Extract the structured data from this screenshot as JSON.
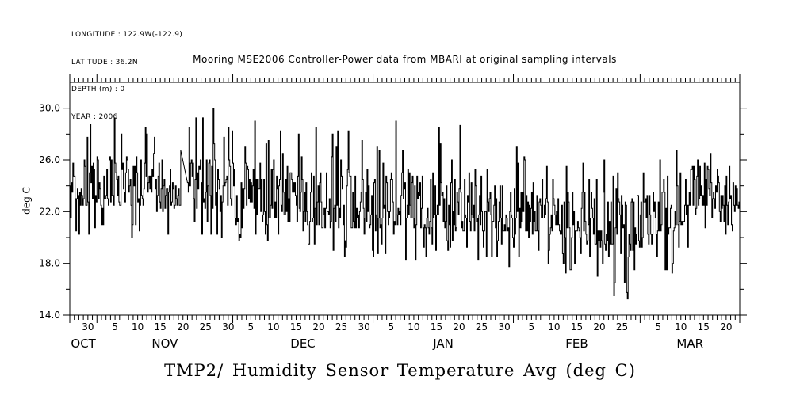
{
  "page": {
    "background": "#ffffff",
    "ink": "#000000"
  },
  "header": {
    "meta_lines": [
      "LONGITUDE : 122.9W(-122.9)",
      "LATITUDE : 36.2N",
      "DEPTH (m) : 0",
      "YEAR : 2006"
    ],
    "title": "Mooring MSE2006 Controller-Power data from MBARI at original sampling intervals"
  },
  "footer": {
    "title": "TMP2/ Humidity Sensor Temperature Avg (deg C)"
  },
  "chart_data": {
    "type": "line",
    "style": "staircase",
    "title": "Mooring MSE2006 Controller-Power data from MBARI at original sampling intervals",
    "xlabel": "",
    "ylabel": "deg C",
    "ylim": [
      14,
      32
    ],
    "yticks_labeled": [
      14.0,
      18.0,
      22.0,
      26.0,
      30.0
    ],
    "yticks_minor": [
      16.0,
      20.0,
      24.0,
      28.0
    ],
    "grid": false,
    "legend": "none",
    "x_view_days": [
      0,
      148
    ],
    "x_day_tick_step": 1,
    "x_day_label_step": 5,
    "x_months": [
      {
        "label": "OCT",
        "first_day": -25,
        "days": 31
      },
      {
        "label": "NOV",
        "first_day": 6,
        "days": 30
      },
      {
        "label": "DEC",
        "first_day": 36,
        "days": 31
      },
      {
        "label": "JAN",
        "first_day": 67,
        "days": 31
      },
      {
        "label": "FEB",
        "first_day": 98,
        "days": 28
      },
      {
        "label": "MAR",
        "first_day": 126,
        "days": 31
      }
    ],
    "series": [
      {
        "name": "TMP2 Humidity Sensor Temperature Avg",
        "unit": "deg C",
        "reconstruction": "seeded-random staircase within observed envelope",
        "samples_per_day": 6,
        "quantize_step": 0.25,
        "seed": 20061026,
        "envelope_points": [
          {
            "day": 0,
            "lo": 22.5,
            "hi": 26.3,
            "ext_lo": 19.8,
            "ext_hi": 30.0
          },
          {
            "day": 25,
            "lo": 22.5,
            "hi": 26.3,
            "ext_lo": 19.8,
            "ext_hi": 30.0
          },
          {
            "day": 45,
            "lo": 21.5,
            "hi": 26.0,
            "ext_lo": 19.5,
            "ext_hi": 30.0
          },
          {
            "day": 60,
            "lo": 20.5,
            "hi": 25.5,
            "ext_lo": 18.5,
            "ext_hi": 28.5
          },
          {
            "day": 72,
            "lo": 21.0,
            "hi": 25.5,
            "ext_lo": 18.0,
            "ext_hi": 30.0
          },
          {
            "day": 88,
            "lo": 20.5,
            "hi": 24.5,
            "ext_lo": 18.0,
            "ext_hi": 28.5
          },
          {
            "day": 103,
            "lo": 20.5,
            "hi": 24.0,
            "ext_lo": 17.5,
            "ext_hi": 26.5
          },
          {
            "day": 118,
            "lo": 19.5,
            "hi": 23.5,
            "ext_lo": 15.5,
            "ext_hi": 26.0
          },
          {
            "day": 125,
            "lo": 19.0,
            "hi": 23.0,
            "ext_lo": 15.0,
            "ext_hi": 25.5
          },
          {
            "day": 132,
            "lo": 20.0,
            "hi": 24.0,
            "ext_lo": 16.5,
            "ext_hi": 26.5
          },
          {
            "day": 139,
            "lo": 22.5,
            "hi": 26.0,
            "ext_lo": 20.0,
            "ext_hi": 28.5
          },
          {
            "day": 148,
            "lo": 22.0,
            "hi": 25.5,
            "ext_lo": 20.0,
            "ext_hi": 28.0
          }
        ],
        "gaps": [
          {
            "from_day": 24.6,
            "to_day": 26.0
          }
        ]
      }
    ]
  }
}
